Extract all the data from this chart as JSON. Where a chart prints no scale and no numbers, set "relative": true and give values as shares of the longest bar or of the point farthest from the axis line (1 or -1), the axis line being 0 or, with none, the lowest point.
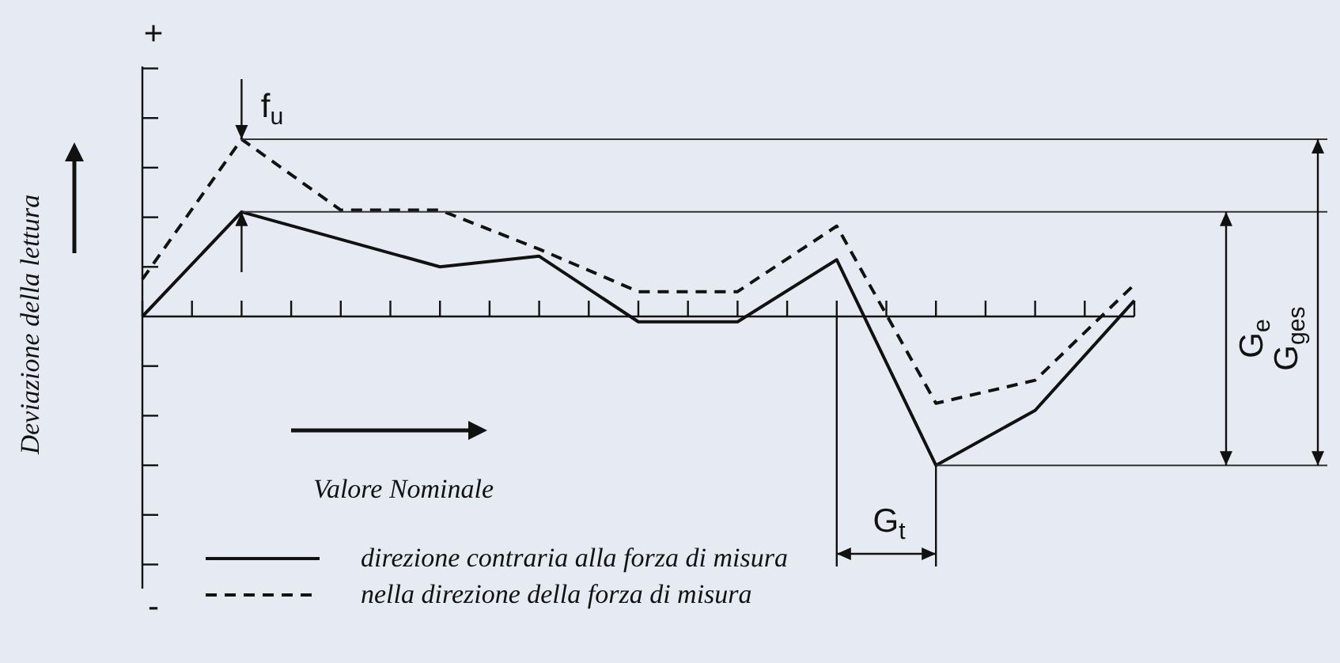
{
  "chart_data": {
    "type": "line",
    "relative": true,
    "xlabel": "Valore Nominale",
    "ylabel": "Deviazione della lettura",
    "categories": [
      null,
      null,
      null,
      null,
      null,
      null,
      null,
      null,
      null,
      null,
      null,
      null,
      null,
      null,
      null,
      null,
      null,
      null,
      null,
      null,
      null
    ],
    "series": [
      {
        "name": "direzione contraria alla forza di misura",
        "color": "#111111",
        "line_style": "solid",
        "values": [
          0,
          null,
          0.59,
          null,
          null,
          null,
          0.28,
          null,
          0.34,
          null,
          -0.03,
          null,
          -0.03,
          null,
          0.32,
          null,
          -0.84,
          null,
          -0.53,
          null,
          0.09
        ]
      },
      {
        "name": "nella direzione della forza di misura",
        "color": "#111111",
        "line_style": "dashed",
        "values": [
          0.21,
          null,
          1,
          null,
          0.6,
          null,
          0.6,
          null,
          0.38,
          null,
          0.14,
          null,
          0.14,
          null,
          0.51,
          null,
          -0.49,
          null,
          -0.36,
          null,
          0.18
        ]
      }
    ],
    "ref_lines": [
      {
        "axis": "y",
        "value": 1,
        "color": "#333333"
      },
      {
        "axis": "y",
        "value": 0.59,
        "color": "#333333"
      },
      {
        "axis": "y",
        "value": -0.84,
        "color": "#333333"
      }
    ],
    "annotations": [
      "+",
      "-",
      "f$_{u}$",
      "G$_{e}$",
      "G$_{ges}$",
      "G$_{t}$"
    ],
    "legend": "bottom",
    "marker": "none"
  }
}
